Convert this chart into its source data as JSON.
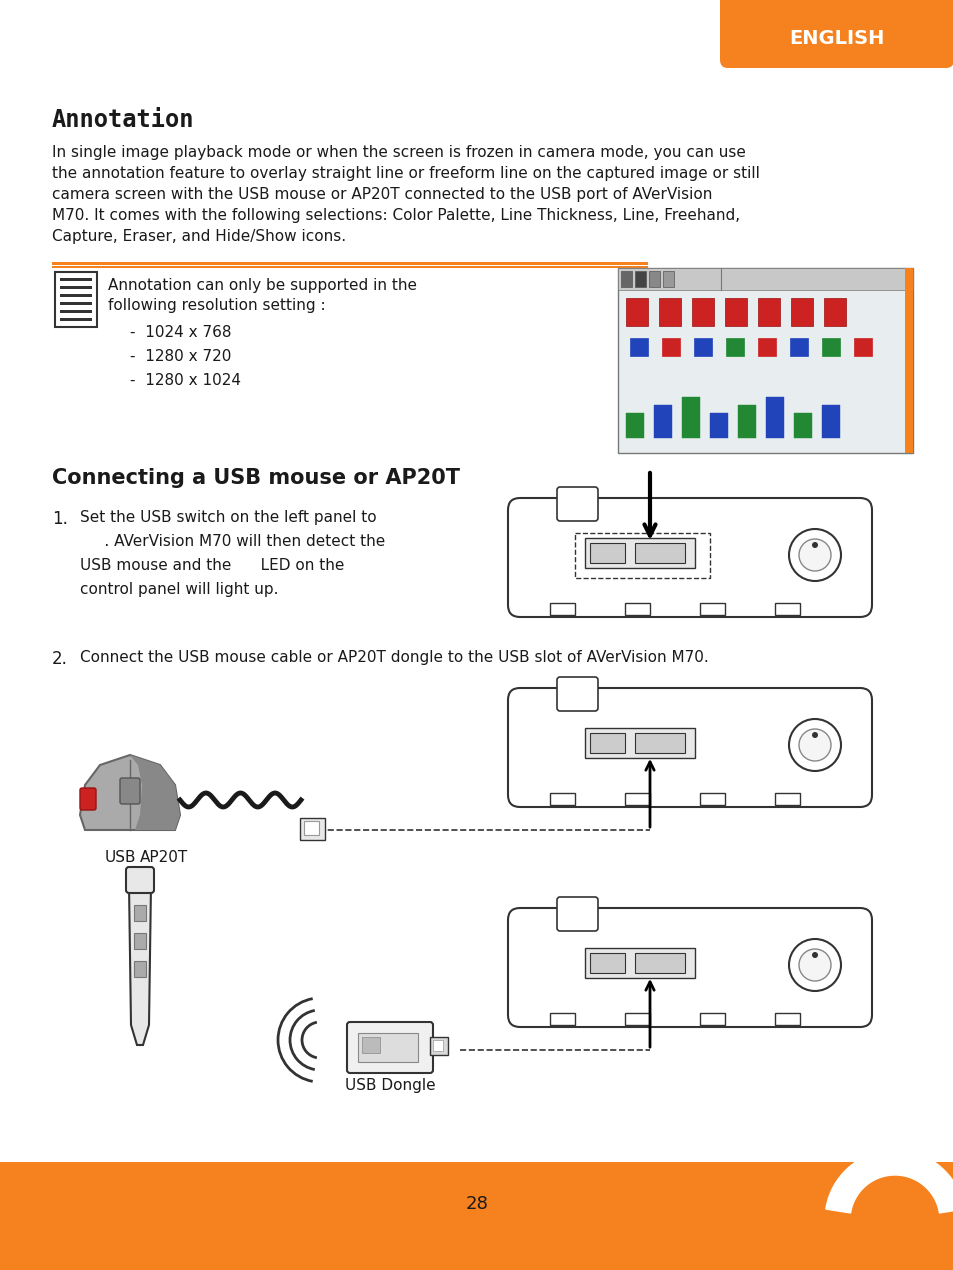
{
  "orange_color": "#F5821F",
  "bg_color": "#FFFFFF",
  "text_color": "#1A1A1A",
  "dark_color": "#333333",
  "english_label": "ENGLISH",
  "page_number": "28",
  "section1_title": "Annotation",
  "section1_body_lines": [
    "In single image playback mode or when the screen is frozen in camera mode, you can use",
    "the annotation feature to overlay straight line or freeform line on the captured image or still",
    "camera screen with the USB mouse or AP20T connected to the USB port of AVerVision",
    "M70. It comes with the following selections: Color Palette, Line Thickness, Line, Freehand,",
    "Capture, Eraser, and Hide/Show icons."
  ],
  "note_line1": "Annotation can only be supported in the",
  "note_line2": "following resolution setting :",
  "bullet_items": [
    "1024 x 768",
    "1280 x 720",
    "1280 x 1024"
  ],
  "section2_title": "Connecting a USB mouse or AP20T",
  "step1_lines": [
    "Set the USB switch on the left panel to",
    "     . AVerVision M70 will then detect the",
    "USB mouse and the      LED on the",
    "control panel will light up."
  ],
  "step2_text": "Connect the USB mouse cable or AP20T dongle to the USB slot of AVerVision M70.",
  "usb_label": "USB",
  "ap20t_label": "AP20T",
  "dongle_label": "USB Dongle"
}
